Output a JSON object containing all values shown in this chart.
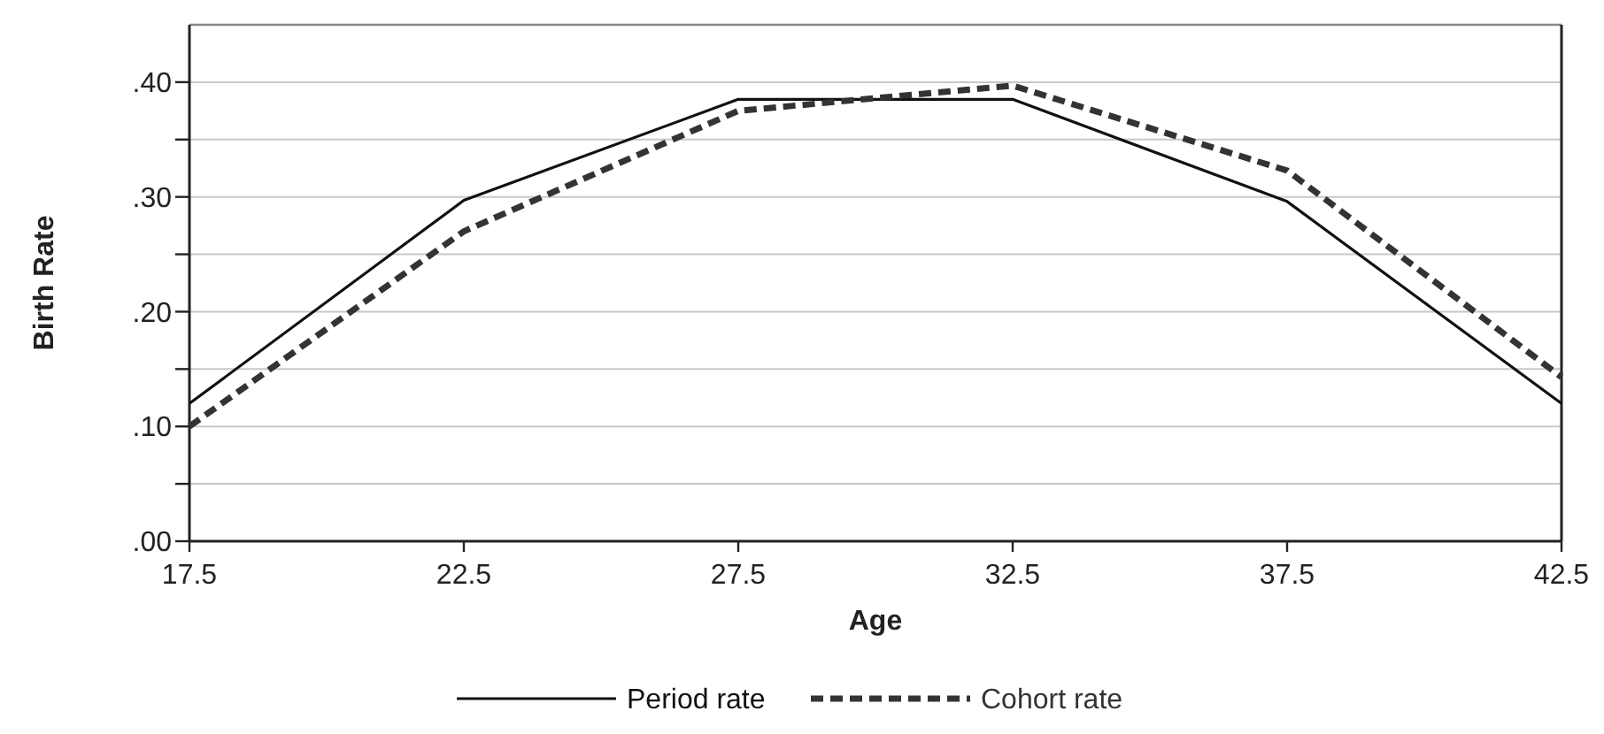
{
  "chart_data": {
    "type": "line",
    "xlabel": "Age",
    "ylabel": "Birth Rate",
    "x": [
      17.5,
      22.5,
      27.5,
      32.5,
      37.5,
      42.5
    ],
    "xlim": [
      17.5,
      42.5
    ],
    "xticks": [
      17.5,
      22.5,
      27.5,
      32.5,
      37.5,
      42.5
    ],
    "ylim": [
      0,
      0.45
    ],
    "yticks": [
      {
        "value": 0,
        "label": ".00"
      },
      {
        "value": 0.05,
        "label": null
      },
      {
        "value": 0.1,
        "label": ".10"
      },
      {
        "value": 0.15,
        "label": null
      },
      {
        "value": 0.2,
        "label": ".20"
      },
      {
        "value": 0.25,
        "label": null
      },
      {
        "value": 0.3,
        "label": ".30"
      },
      {
        "value": 0.35,
        "label": null
      },
      {
        "value": 0.4,
        "label": ".40"
      }
    ],
    "grid": "y",
    "legend": "bottom",
    "marker": "none",
    "series": [
      {
        "name": "Period rate",
        "color": "#111111",
        "line_style": "solid",
        "values": [
          0.12,
          0.297,
          0.385,
          0.385,
          0.296,
          0.12
        ]
      },
      {
        "name": "Cohort rate",
        "color": "#333333",
        "line_style": "dashed",
        "values": [
          0.1,
          0.27,
          0.375,
          0.397,
          0.323,
          0.143
        ]
      }
    ]
  }
}
